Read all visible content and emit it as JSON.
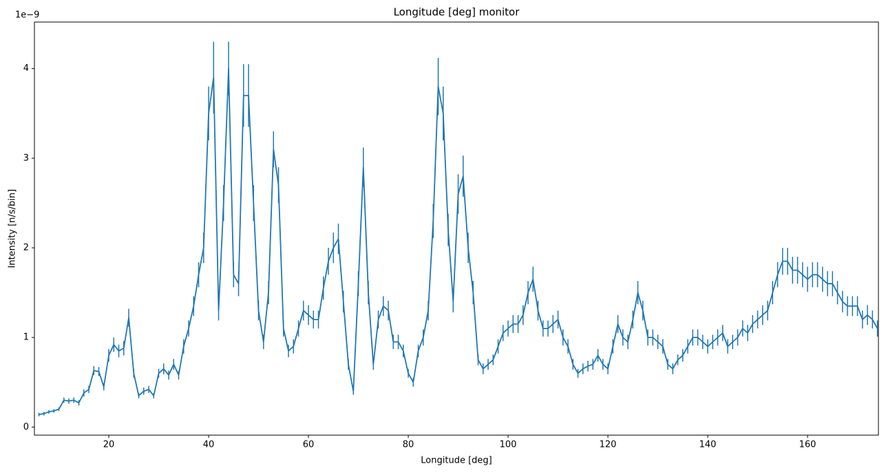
{
  "chart_data": {
    "type": "line",
    "title": "Longitude [deg] monitor",
    "xlabel": "Longitude [deg]",
    "ylabel": "Intensity [n/s/bin]",
    "offset_label": "1e−9",
    "color": "#1f77b4",
    "x": [
      6,
      7,
      8,
      9,
      10,
      11,
      12,
      13,
      14,
      15,
      16,
      17,
      18,
      19,
      20,
      21,
      22,
      23,
      24,
      25,
      26,
      27,
      28,
      29,
      30,
      31,
      32,
      33,
      34,
      35,
      36,
      37,
      38,
      39,
      40,
      41,
      42,
      43,
      44,
      45,
      46,
      47,
      48,
      49,
      50,
      51,
      52,
      53,
      54,
      55,
      56,
      57,
      58,
      59,
      60,
      61,
      62,
      63,
      64,
      65,
      66,
      67,
      68,
      69,
      70,
      71,
      72,
      73,
      74,
      75,
      76,
      77,
      78,
      79,
      80,
      81,
      82,
      83,
      84,
      85,
      86,
      87,
      88,
      89,
      90,
      91,
      92,
      93,
      94,
      95,
      96,
      97,
      98,
      99,
      100,
      101,
      102,
      103,
      104,
      105,
      106,
      107,
      108,
      109,
      110,
      111,
      112,
      113,
      114,
      115,
      116,
      117,
      118,
      119,
      120,
      121,
      122,
      123,
      124,
      125,
      126,
      127,
      128,
      129,
      130,
      131,
      132,
      133,
      134,
      135,
      136,
      137,
      138,
      139,
      140,
      141,
      142,
      143,
      144,
      145,
      146,
      147,
      148,
      149,
      150,
      151,
      152,
      153,
      154,
      155,
      156,
      157,
      158,
      159,
      160,
      161,
      162,
      163,
      164,
      165,
      166,
      167,
      168,
      169,
      170,
      171,
      172,
      173,
      174
    ],
    "values": [
      0.14,
      0.15,
      0.17,
      0.18,
      0.2,
      0.3,
      0.29,
      0.3,
      0.27,
      0.38,
      0.42,
      0.63,
      0.62,
      0.45,
      0.8,
      0.92,
      0.85,
      0.88,
      1.22,
      0.6,
      0.35,
      0.4,
      0.42,
      0.35,
      0.6,
      0.65,
      0.58,
      0.7,
      0.58,
      0.9,
      1.1,
      1.35,
      1.7,
      2.0,
      3.5,
      3.9,
      1.3,
      2.5,
      4.0,
      1.7,
      1.6,
      3.7,
      3.7,
      2.5,
      1.3,
      0.95,
      1.5,
      3.1,
      2.7,
      1.1,
      0.85,
      0.9,
      1.1,
      1.3,
      1.25,
      1.2,
      1.2,
      1.55,
      1.85,
      2.0,
      2.1,
      1.4,
      0.7,
      0.4,
      1.6,
      2.9,
      1.5,
      0.7,
      1.2,
      1.35,
      1.3,
      0.95,
      0.95,
      0.85,
      0.6,
      0.5,
      0.85,
      1.0,
      1.3,
      2.3,
      3.8,
      3.5,
      2.2,
      1.4,
      2.6,
      2.8,
      2.0,
      1.5,
      0.75,
      0.65,
      0.7,
      0.75,
      0.9,
      1.05,
      1.1,
      1.15,
      1.15,
      1.25,
      1.5,
      1.65,
      1.3,
      1.1,
      1.1,
      1.15,
      1.2,
      1.0,
      0.9,
      0.7,
      0.6,
      0.65,
      0.68,
      0.7,
      0.8,
      0.7,
      0.65,
      0.9,
      1.15,
      1.0,
      0.95,
      1.2,
      1.5,
      1.3,
      1.0,
      1.0,
      0.95,
      0.9,
      0.7,
      0.65,
      0.75,
      0.8,
      0.9,
      1.0,
      1.0,
      0.95,
      0.9,
      0.95,
      1.0,
      1.05,
      0.9,
      0.95,
      1.0,
      1.1,
      1.05,
      1.15,
      1.2,
      1.25,
      1.3,
      1.5,
      1.7,
      1.85,
      1.85,
      1.75,
      1.75,
      1.7,
      1.65,
      1.7,
      1.7,
      1.65,
      1.6,
      1.6,
      1.5,
      1.4,
      1.35,
      1.35,
      1.35,
      1.2,
      1.25,
      1.2,
      1.1
    ],
    "errors": [
      0.02,
      0.02,
      0.02,
      0.02,
      0.02,
      0.03,
      0.03,
      0.03,
      0.03,
      0.04,
      0.04,
      0.05,
      0.05,
      0.04,
      0.07,
      0.08,
      0.07,
      0.08,
      0.1,
      0.05,
      0.03,
      0.04,
      0.04,
      0.03,
      0.05,
      0.06,
      0.05,
      0.06,
      0.05,
      0.08,
      0.09,
      0.11,
      0.14,
      0.17,
      0.3,
      0.4,
      0.11,
      0.2,
      0.3,
      0.14,
      0.14,
      0.35,
      0.35,
      0.2,
      0.11,
      0.08,
      0.13,
      0.2,
      0.2,
      0.09,
      0.07,
      0.08,
      0.09,
      0.11,
      0.11,
      0.1,
      0.1,
      0.13,
      0.15,
      0.17,
      0.17,
      0.12,
      0.06,
      0.04,
      0.14,
      0.22,
      0.13,
      0.06,
      0.1,
      0.11,
      0.11,
      0.08,
      0.08,
      0.07,
      0.05,
      0.05,
      0.07,
      0.09,
      0.11,
      0.19,
      0.32,
      0.3,
      0.18,
      0.12,
      0.22,
      0.23,
      0.17,
      0.13,
      0.06,
      0.06,
      0.06,
      0.06,
      0.08,
      0.09,
      0.09,
      0.1,
      0.1,
      0.11,
      0.13,
      0.14,
      0.11,
      0.09,
      0.09,
      0.1,
      0.1,
      0.09,
      0.08,
      0.06,
      0.05,
      0.06,
      0.06,
      0.06,
      0.07,
      0.06,
      0.06,
      0.08,
      0.1,
      0.09,
      0.08,
      0.1,
      0.13,
      0.11,
      0.09,
      0.09,
      0.08,
      0.08,
      0.06,
      0.06,
      0.06,
      0.07,
      0.08,
      0.09,
      0.09,
      0.08,
      0.08,
      0.08,
      0.09,
      0.09,
      0.08,
      0.08,
      0.09,
      0.09,
      0.09,
      0.1,
      0.1,
      0.11,
      0.11,
      0.13,
      0.14,
      0.15,
      0.15,
      0.15,
      0.15,
      0.14,
      0.14,
      0.14,
      0.14,
      0.14,
      0.14,
      0.14,
      0.13,
      0.12,
      0.11,
      0.11,
      0.11,
      0.1,
      0.11,
      0.1,
      0.09
    ],
    "xlim": [
      5.1,
      174.2
    ],
    "ylim": [
      -0.09,
      4.52
    ],
    "xticks": [
      20,
      40,
      60,
      80,
      100,
      120,
      140,
      160
    ],
    "yticks": [
      0,
      1,
      2,
      3,
      4
    ]
  }
}
